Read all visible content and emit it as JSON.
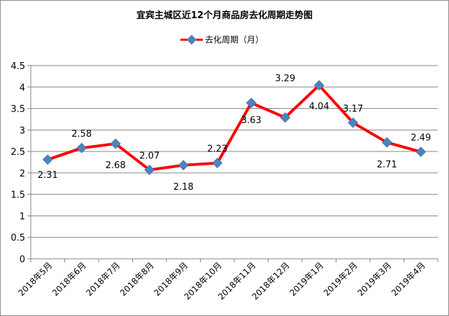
{
  "chart_data": {
    "type": "line",
    "title": "宜宾主城区近12个月商品房去化周期走势图",
    "categories": [
      "2018年5月",
      "2018年6月",
      "2018年7月",
      "2018年8月",
      "2018年9月",
      "2018年10月",
      "2018年11月",
      "2018年12月",
      "2019年1月",
      "2019年2月",
      "2019年3月",
      "2019年4月"
    ],
    "series": [
      {
        "name": "去化周期（月）",
        "values": [
          2.31,
          2.58,
          2.68,
          2.07,
          2.18,
          2.23,
          3.63,
          3.29,
          4.04,
          3.17,
          2.71,
          2.49
        ],
        "labels": [
          "2.31",
          "2.58",
          "2.68",
          "2.07",
          "2.18",
          "2.23",
          "3.63",
          "3.29",
          "4.04",
          "3.17",
          "2.71",
          "2.49"
        ],
        "color": "#ff0000",
        "marker_color": "#4f81bd"
      }
    ],
    "xlabel": "",
    "ylabel": "",
    "ylim": [
      0,
      4.5
    ],
    "yticks": [
      "0",
      "0.5",
      "1",
      "1.5",
      "2",
      "2.5",
      "3",
      "3.5",
      "4",
      "4.5"
    ],
    "grid": true,
    "legend_position": "top"
  }
}
